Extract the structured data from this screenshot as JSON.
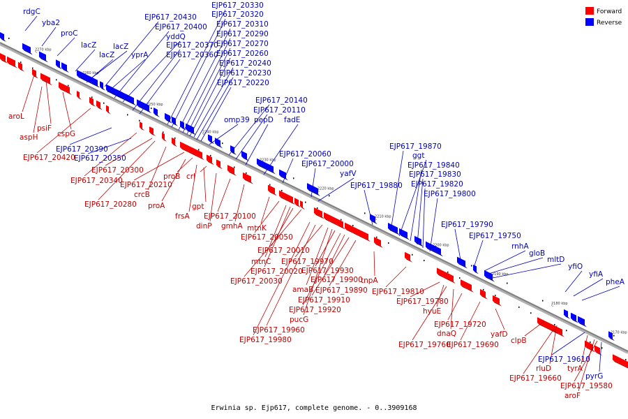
{
  "title": "Erwinia sp. Ejp617, complete genome. - 0..3909168",
  "legend": [
    {
      "label": "Forward",
      "color": "#ff0000"
    },
    {
      "label": "Reverse",
      "color": "#0000ff"
    }
  ],
  "colors": {
    "forward": "#ff0000",
    "forward_dark": "#b80000",
    "reverse": "#0000ff",
    "reverse_dark": "#000080",
    "axis": "#808080",
    "forward_label": "#c00000",
    "reverse_label": "#0000c0"
  },
  "ticks": [
    "2270 kbp",
    "2260 kbp",
    "2250 kbp",
    "2240 kbp",
    "2230 kbp",
    "2220 kbp",
    "2210 kbp",
    "2200 kbp",
    "2190 kbp",
    "2180 kbp",
    "2170 kbp"
  ],
  "labels": {
    "reverse": [
      "rdgC",
      "yba2",
      "proC",
      "lacZ",
      "lacZ",
      "lacZ",
      "yprA",
      "yddQ",
      "EJP617_20430",
      "EJP617_20400",
      "EJP617_20370",
      "EJP617_20360",
      "EJP617_20330",
      "EJP617_20320",
      "EJP617_20310",
      "EJP617_20290",
      "EJP617_20270",
      "EJP617_20260",
      "EJP617_20240",
      "EJP617_20230",
      "EJP617_20220",
      "EJP617_20390",
      "EJP617_20350",
      "omp39",
      "EJP617_20140",
      "EJP617_20110",
      "pepD",
      "fadE",
      "EJP617_20060",
      "EJP617_20000",
      "yafV",
      "EJP617_19880",
      "EJP617_19870",
      "ggt",
      "EJP617_19840",
      "EJP617_19830",
      "EJP617_19820",
      "EJP617_19800",
      "EJP617_19790",
      "EJP617_19750",
      "rnhA",
      "gloB",
      "mltD",
      "yfiO",
      "yfiA",
      "pheA",
      "EJP617_19610",
      "pyrG"
    ],
    "forward": [
      "aroL",
      "psiF",
      "aspH",
      "cspG",
      "EJP617_20420",
      "EJP617_20300",
      "EJP617_20340",
      "EJP617_20210",
      "crcB",
      "proB",
      "EJP617_20280",
      "proA",
      "crl",
      "gpt",
      "frsA",
      "dinP",
      "EJP617_20100",
      "gmhA",
      "mtnK",
      "EJP617_20050",
      "EJP617_20010",
      "mtnC",
      "EJP617_19970",
      "EJP617_20020",
      "EJP617_20030",
      "EJP617_19930",
      "EJP617_19900",
      "amaB",
      "EJP617_19890",
      "EJP617_19910",
      "EJP617_19920",
      "pucG",
      "EJP617_19960",
      "EJP617_19980",
      "tnpA",
      "EJP617_19810",
      "EJP617_19780",
      "hyuE",
      "EJP617_19720",
      "dnaQ",
      "EJP617_19760",
      "EJP617_19690",
      "yafD",
      "clpB",
      "rluD",
      "tyrA",
      "EJP617_19660",
      "EJP617_19580",
      "aroF"
    ]
  }
}
